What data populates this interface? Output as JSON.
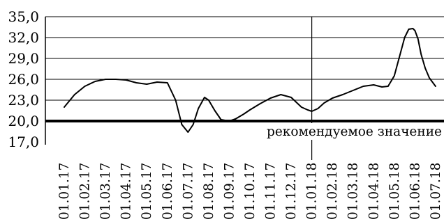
{
  "chart_data": {
    "type": "line",
    "title": "",
    "xlabel": "",
    "ylabel": "",
    "ylim": [
      17.0,
      35.0
    ],
    "yticks": [
      "17,0",
      "20,0",
      "23,0",
      "26,0",
      "29,0",
      "32,0",
      "35,0"
    ],
    "grid": "horizontal",
    "categories": [
      "01.01.17",
      "01.02.17",
      "01.03.17",
      "01.04.17",
      "01.05.17",
      "01.06.17",
      "01.07.17",
      "01.08.17",
      "01.09.17",
      "01.10.17",
      "01.11.17",
      "01.12.17",
      "01.01.18",
      "01.02.18",
      "01.03.18",
      "01.04.18",
      "01.05.18",
      "01.06.18",
      "01.07.18"
    ],
    "series": [
      {
        "x": [
          0,
          0.5,
          1,
          1.5,
          2,
          2.5,
          3,
          3.5,
          4,
          4.5,
          5,
          5.4,
          5.7,
          6,
          6.25,
          6.5,
          6.8,
          7,
          7.3,
          7.6,
          8,
          8.3,
          8.7,
          9,
          9.5,
          10,
          10.5,
          11,
          11.5,
          11.8,
          12,
          12.3,
          12.6,
          13,
          13.5,
          14,
          14.5,
          15,
          15.4,
          15.7,
          16,
          16.3,
          16.5,
          16.7,
          16.9,
          17,
          17.15,
          17.3,
          17.5,
          17.7,
          18
        ],
        "values": [
          22.0,
          23.8,
          25.0,
          25.7,
          26.0,
          26.0,
          25.9,
          25.5,
          25.3,
          25.6,
          25.5,
          23.0,
          19.5,
          18.4,
          19.5,
          21.8,
          23.4,
          23.0,
          21.5,
          20.2,
          20.0,
          20.3,
          21.0,
          21.6,
          22.5,
          23.3,
          23.8,
          23.4,
          22.0,
          21.6,
          21.4,
          21.8,
          22.6,
          23.3,
          23.8,
          24.4,
          25.0,
          25.2,
          24.9,
          25.0,
          26.5,
          29.8,
          32.0,
          33.2,
          33.3,
          33.0,
          31.8,
          29.6,
          27.6,
          26.2,
          25.0
        ]
      }
    ],
    "reference_line": {
      "value": 20.0,
      "label": "рекомендуемое значение"
    },
    "vertical_marker": {
      "category": "01.01.18"
    }
  }
}
